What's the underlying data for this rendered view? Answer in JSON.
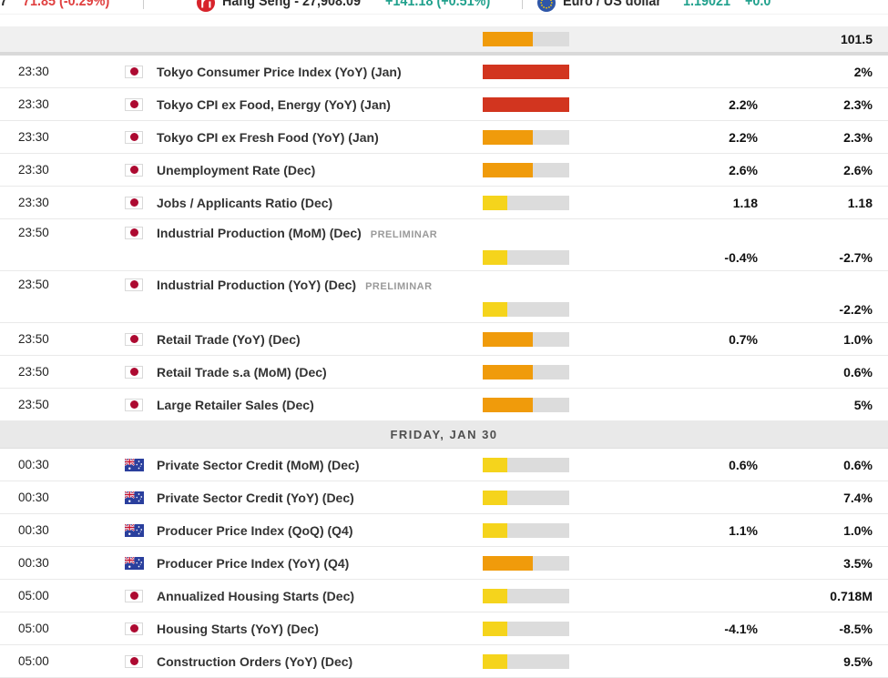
{
  "ticker": {
    "left_fragment": "7",
    "index_change": "71.85 (-0.29%)",
    "hang_seng": {
      "name": "Hang Seng - 27,908.09",
      "change": "+141.18 (+0.51%)"
    },
    "eurusd": {
      "name": "Euro / US dollar",
      "value": "1.19021",
      "change": "+0.0"
    }
  },
  "colors": {
    "impact_low": "#F5D41C",
    "impact_medium": "#F09B0B",
    "impact_high": "#D2351F",
    "bar_track": "#DCDCDC",
    "up": "#21A18D",
    "down": "#E04040",
    "japan_flag_red": "#AD0A31",
    "australia_flag_blue": "#2A3F9D"
  },
  "calendar": {
    "rows": [
      {
        "type": "partial",
        "impact": "medium",
        "consensus": "",
        "previous": "101.5"
      },
      {
        "type": "event",
        "time": "23:30",
        "country": "jp",
        "event": "Tokyo Consumer Price Index (YoY) (Jan)",
        "impact": "high",
        "consensus": "",
        "previous": "2%"
      },
      {
        "type": "event",
        "time": "23:30",
        "country": "jp",
        "event": "Tokyo CPI ex Food, Energy (YoY) (Jan)",
        "impact": "high",
        "consensus": "2.2%",
        "previous": "2.3%"
      },
      {
        "type": "event",
        "time": "23:30",
        "country": "jp",
        "event": "Tokyo CPI ex Fresh Food (YoY) (Jan)",
        "impact": "medium",
        "consensus": "2.2%",
        "previous": "2.3%"
      },
      {
        "type": "event",
        "time": "23:30",
        "country": "jp",
        "event": "Unemployment Rate (Dec)",
        "impact": "medium",
        "consensus": "2.6%",
        "previous": "2.6%"
      },
      {
        "type": "event",
        "time": "23:30",
        "country": "jp",
        "event": "Jobs / Applicants Ratio (Dec)",
        "impact": "low",
        "consensus": "1.18",
        "previous": "1.18"
      },
      {
        "type": "event",
        "time": "23:50",
        "country": "jp",
        "event": "Industrial Production (MoM) (Dec)",
        "badge": "PRELIMINAR",
        "impact": "low",
        "consensus": "-0.4%",
        "previous": "-2.7%",
        "tall": true
      },
      {
        "type": "event",
        "time": "23:50",
        "country": "jp",
        "event": "Industrial Production (YoY) (Dec)",
        "badge": "PRELIMINAR",
        "impact": "low",
        "consensus": "",
        "previous": "-2.2%",
        "tall": true
      },
      {
        "type": "event",
        "time": "23:50",
        "country": "jp",
        "event": "Retail Trade (YoY) (Dec)",
        "impact": "medium",
        "consensus": "0.7%",
        "previous": "1.0%"
      },
      {
        "type": "event",
        "time": "23:50",
        "country": "jp",
        "event": "Retail Trade s.a (MoM) (Dec)",
        "impact": "medium",
        "consensus": "",
        "previous": "0.6%"
      },
      {
        "type": "event",
        "time": "23:50",
        "country": "jp",
        "event": "Large Retailer Sales (Dec)",
        "impact": "medium",
        "consensus": "",
        "previous": "5%"
      },
      {
        "type": "day",
        "label": "FRIDAY, JAN 30"
      },
      {
        "type": "event",
        "time": "00:30",
        "country": "au",
        "event": "Private Sector Credit (MoM) (Dec)",
        "impact": "low",
        "consensus": "0.6%",
        "previous": "0.6%"
      },
      {
        "type": "event",
        "time": "00:30",
        "country": "au",
        "event": "Private Sector Credit (YoY) (Dec)",
        "impact": "low",
        "consensus": "",
        "previous": "7.4%"
      },
      {
        "type": "event",
        "time": "00:30",
        "country": "au",
        "event": "Producer Price Index (QoQ) (Q4)",
        "impact": "low",
        "consensus": "1.1%",
        "previous": "1.0%"
      },
      {
        "type": "event",
        "time": "00:30",
        "country": "au",
        "event": "Producer Price Index (YoY) (Q4)",
        "impact": "medium",
        "consensus": "",
        "previous": "3.5%"
      },
      {
        "type": "event",
        "time": "05:00",
        "country": "jp",
        "event": "Annualized Housing Starts (Dec)",
        "impact": "low",
        "consensus": "",
        "previous": "0.718M"
      },
      {
        "type": "event",
        "time": "05:00",
        "country": "jp",
        "event": "Housing Starts (YoY) (Dec)",
        "impact": "low",
        "consensus": "-4.1%",
        "previous": "-8.5%"
      },
      {
        "type": "event",
        "time": "05:00",
        "country": "jp",
        "event": "Construction Orders (YoY) (Dec)",
        "impact": "low",
        "consensus": "",
        "previous": "9.5%"
      }
    ]
  }
}
